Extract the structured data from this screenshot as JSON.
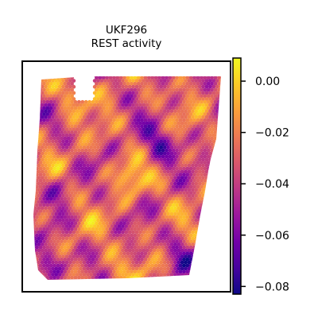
{
  "chart_data": {
    "type": "heatmap",
    "title": "UKF296",
    "subtitle": "REST activity",
    "xlabel": "",
    "ylabel": "",
    "colormap": "plasma",
    "colorbar": {
      "range": [
        -0.083,
        0.009
      ],
      "ticks": [
        0.0,
        -0.02,
        -0.04,
        -0.06,
        -0.08
      ],
      "tick_labels": [
        "0.00",
        "−0.02",
        "−0.04",
        "−0.06",
        "−0.08"
      ]
    },
    "colors": {
      "plasma": [
        "#0d0887",
        "#46039f",
        "#7201a8",
        "#9c179e",
        "#bd3786",
        "#d8576b",
        "#ed7953",
        "#fb9f3a",
        "#fdca26",
        "#f0f921"
      ],
      "frame": "#000000",
      "background": "#ffffff"
    }
  }
}
